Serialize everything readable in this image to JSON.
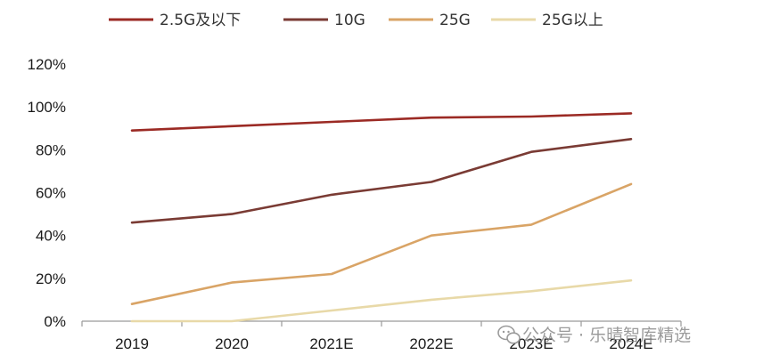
{
  "chart_data": {
    "type": "line",
    "categories": [
      "2019",
      "2020",
      "2021E",
      "2022E",
      "2023E",
      "2024E"
    ],
    "ylim": [
      0,
      120
    ],
    "yticks": [
      0,
      20,
      40,
      60,
      80,
      100,
      120
    ],
    "ytick_format": "%",
    "grid": false,
    "legend_position": "top",
    "series": [
      {
        "name": "2.5G及以下",
        "color": "#9b2a24",
        "values": [
          89,
          91,
          93,
          95,
          95.5,
          97
        ]
      },
      {
        "name": "10G",
        "color": "#7a3b34",
        "values": [
          46,
          50,
          59,
          65,
          79,
          85
        ]
      },
      {
        "name": "25G",
        "color": "#d9a466",
        "values": [
          8,
          18,
          22,
          40,
          45,
          64
        ]
      },
      {
        "name": "25G以上",
        "color": "#e8d9a8",
        "values": [
          0,
          0,
          5,
          10,
          14,
          19
        ]
      }
    ]
  },
  "watermark": {
    "icon": "wechat-icon",
    "text": "公众号 · 乐晴智库精选"
  }
}
